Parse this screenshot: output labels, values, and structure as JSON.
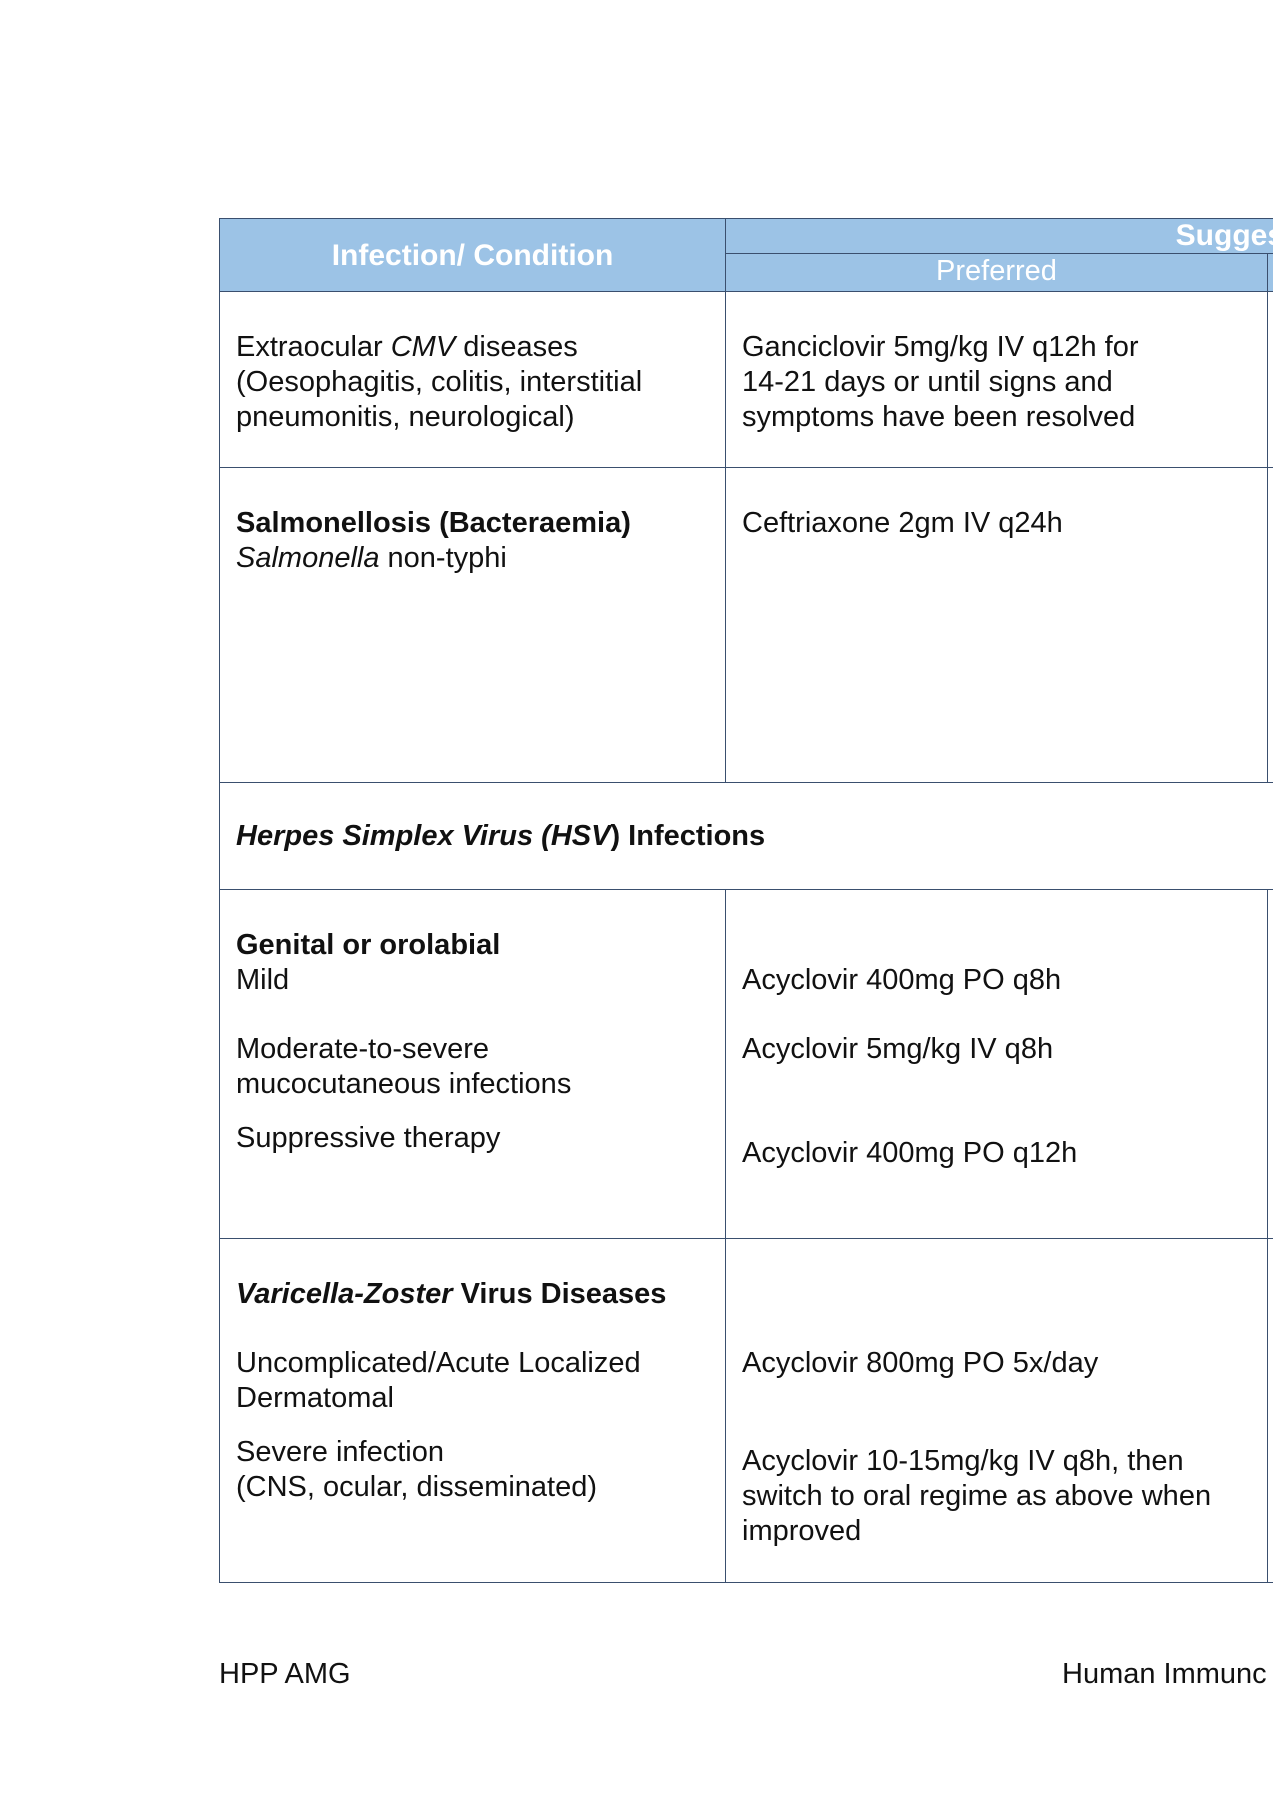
{
  "table": {
    "header": {
      "condition": "Infection/ Condition",
      "suggested": "Suggested",
      "preferred": "Preferred"
    },
    "cmv": {
      "cond_prefix": "Extraocular ",
      "cond_italic": "CMV",
      "cond_suffix": " diseases",
      "cond_line2": "(Oesophagitis, colitis, interstitial",
      "cond_line3": "pneumonitis, neurological)",
      "pref_line1": "Ganciclovir 5mg/kg IV q12h for",
      "pref_line2": "14-21 days or until signs and",
      "pref_line3": "symptoms have been resolved"
    },
    "salmonella": {
      "cond_title": "Salmonellosis (Bacteraemia)",
      "cond_italic": "Salmonella",
      "cond_suffix": " non-typhi",
      "pref": "Ceftriaxone 2gm IV q24h"
    },
    "hsv_section": {
      "italic": "Herpes Simplex Virus (HSV",
      "suffix": ") Infections"
    },
    "hsv": {
      "cond_title": "Genital or orolabial",
      "cond_mild": "Mild",
      "cond_mod1": "Moderate-to-severe",
      "cond_mod2": "mucocutaneous infections",
      "cond_supp": "Suppressive therapy",
      "pref_mild": "Acyclovir 400mg PO q8h",
      "pref_mod": "Acyclovir 5mg/kg IV q8h",
      "pref_supp": "Acyclovir 400mg PO q12h"
    },
    "vzv": {
      "title_italic": "Varicella-Zoster",
      "title_suffix": " Virus Diseases",
      "cond_unc1": "Uncomplicated/Acute Localized",
      "cond_unc2": "Dermatomal",
      "cond_sev1": "Severe infection",
      "cond_sev2": "(CNS, ocular, disseminated)",
      "pref_unc": "Acyclovir 800mg PO 5x/day",
      "pref_sev1": "Acyclovir 10-15mg/kg IV q8h, then",
      "pref_sev2": "switch to oral regime as above when",
      "pref_sev3": "improved"
    }
  },
  "footer": {
    "left": "HPP AMG",
    "right": "Human Immunc"
  }
}
